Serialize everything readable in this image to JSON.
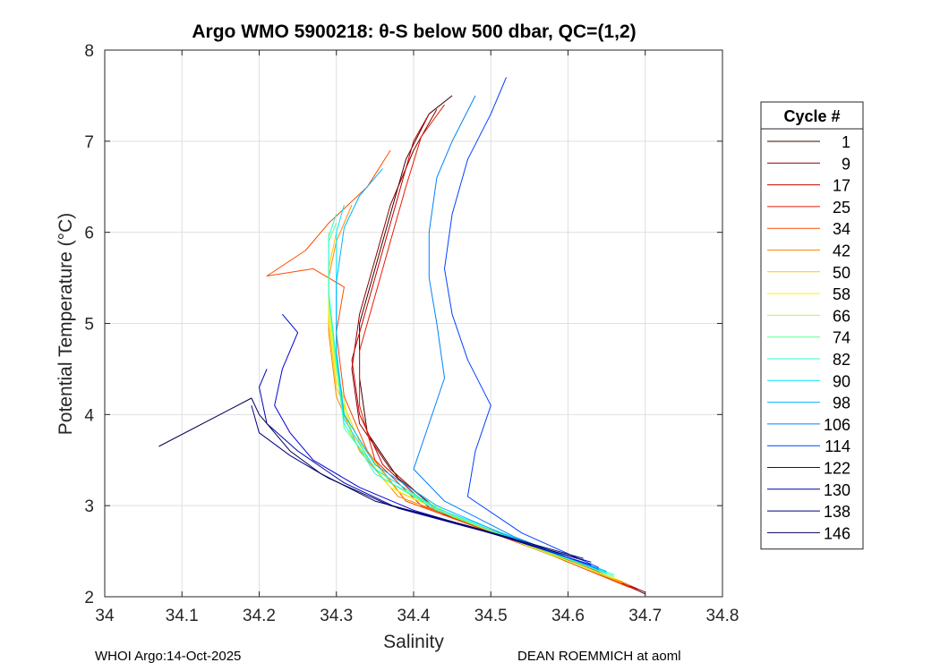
{
  "title": "Argo WMO 5900218: θ-S below 500 dbar,  QC=(1,2)",
  "footer": {
    "left": "WHOI Argo:14-Oct-2025",
    "right": "DEAN ROEMMICH at aoml"
  },
  "chart_data": {
    "type": "line",
    "title": "Argo WMO 5900218: θ-S below 500 dbar,  QC=(1,2)",
    "xlabel": "Salinity",
    "ylabel": "Potential Temperature (°C)",
    "xlim": [
      34.0,
      34.8
    ],
    "ylim": [
      2,
      8
    ],
    "xticks": [
      34.0,
      34.1,
      34.2,
      34.3,
      34.4,
      34.5,
      34.6,
      34.7,
      34.8
    ],
    "xtick_labels": [
      "34",
      "34.1",
      "34.2",
      "34.3",
      "34.4",
      "34.5",
      "34.6",
      "34.7",
      "34.8"
    ],
    "yticks": [
      2,
      3,
      4,
      5,
      6,
      7,
      8
    ],
    "ytick_labels": [
      "2",
      "3",
      "4",
      "5",
      "6",
      "7",
      "8"
    ],
    "grid": true,
    "legend": {
      "title": "Cycle #",
      "placement": "right-outside",
      "entries": [
        {
          "label": "1",
          "color": "#3a0000"
        },
        {
          "label": "9",
          "color": "#8a0000"
        },
        {
          "label": "17",
          "color": "#c80000"
        },
        {
          "label": "25",
          "color": "#e81c00"
        },
        {
          "label": "34",
          "color": "#ff4a00"
        },
        {
          "label": "42",
          "color": "#ff8a00"
        },
        {
          "label": "50",
          "color": "#ffc800"
        },
        {
          "label": "58",
          "color": "#fff200"
        },
        {
          "label": "66",
          "color": "#b0ff40"
        },
        {
          "label": "74",
          "color": "#60ff90"
        },
        {
          "label": "82",
          "color": "#20ffd0"
        },
        {
          "label": "90",
          "color": "#00e8ff"
        },
        {
          "label": "98",
          "color": "#00b4ff"
        },
        {
          "label": "106",
          "color": "#0080ff"
        },
        {
          "label": "114",
          "color": "#0040ff"
        },
        {
          "label": "122",
          "color": "#0000d8"
        },
        {
          "label": "130",
          "color": "#0000a8"
        },
        {
          "label": "138",
          "color": "#000080"
        },
        {
          "label": "146",
          "color": "#000050"
        }
      ]
    },
    "series": [
      {
        "name": "1",
        "color": "#3a0000",
        "points": [
          [
            34.7,
            2.03
          ],
          [
            34.62,
            2.35
          ],
          [
            34.52,
            2.65
          ],
          [
            34.44,
            2.9
          ],
          [
            34.38,
            3.3
          ],
          [
            34.34,
            3.8
          ],
          [
            34.33,
            4.4
          ],
          [
            34.33,
            5.0
          ],
          [
            34.35,
            5.6
          ],
          [
            34.37,
            6.2
          ],
          [
            34.39,
            6.8
          ],
          [
            34.42,
            7.3
          ],
          [
            34.45,
            7.5
          ]
        ]
      },
      {
        "name": "9",
        "color": "#8a0000",
        "points": [
          [
            34.7,
            2.05
          ],
          [
            34.61,
            2.38
          ],
          [
            34.51,
            2.7
          ],
          [
            34.43,
            2.95
          ],
          [
            34.37,
            3.4
          ],
          [
            34.33,
            3.9
          ],
          [
            34.32,
            4.5
          ],
          [
            34.33,
            5.1
          ],
          [
            34.35,
            5.7
          ],
          [
            34.37,
            6.3
          ],
          [
            34.4,
            6.9
          ],
          [
            34.43,
            7.35
          ]
        ]
      },
      {
        "name": "17",
        "color": "#c80000",
        "points": [
          [
            34.69,
            2.07
          ],
          [
            34.6,
            2.4
          ],
          [
            34.5,
            2.72
          ],
          [
            34.42,
            2.98
          ],
          [
            34.36,
            3.45
          ],
          [
            34.33,
            4.0
          ],
          [
            34.32,
            4.6
          ],
          [
            34.34,
            5.2
          ],
          [
            34.36,
            5.8
          ],
          [
            34.38,
            6.4
          ],
          [
            34.4,
            7.0
          ],
          [
            34.42,
            7.3
          ]
        ]
      },
      {
        "name": "25",
        "color": "#e81c00",
        "points": [
          [
            34.69,
            2.08
          ],
          [
            34.6,
            2.42
          ],
          [
            34.49,
            2.75
          ],
          [
            34.41,
            3.0
          ],
          [
            34.35,
            3.5
          ],
          [
            34.33,
            4.1
          ],
          [
            34.33,
            4.7
          ],
          [
            34.35,
            5.3
          ],
          [
            34.37,
            5.9
          ],
          [
            34.39,
            6.5
          ],
          [
            34.41,
            7.05
          ],
          [
            34.44,
            7.4
          ]
        ]
      },
      {
        "name": "34",
        "color": "#ff4a00",
        "points": [
          [
            34.68,
            2.1
          ],
          [
            34.58,
            2.45
          ],
          [
            34.47,
            2.8
          ],
          [
            34.39,
            3.05
          ],
          [
            34.34,
            3.6
          ],
          [
            34.31,
            4.2
          ],
          [
            34.3,
            4.9
          ],
          [
            34.31,
            5.4
          ],
          [
            34.27,
            5.6
          ],
          [
            34.21,
            5.52
          ],
          [
            34.26,
            5.8
          ],
          [
            34.29,
            6.1
          ],
          [
            34.34,
            6.5
          ],
          [
            34.37,
            6.9
          ]
        ]
      },
      {
        "name": "42",
        "color": "#ff8a00",
        "points": [
          [
            34.68,
            2.12
          ],
          [
            34.58,
            2.48
          ],
          [
            34.47,
            2.82
          ],
          [
            34.38,
            3.1
          ],
          [
            34.33,
            3.6
          ],
          [
            34.3,
            4.2
          ],
          [
            34.29,
            4.9
          ],
          [
            34.29,
            5.5
          ],
          [
            34.3,
            5.9
          ],
          [
            34.32,
            6.3
          ]
        ]
      },
      {
        "name": "50",
        "color": "#ffc800",
        "points": [
          [
            34.67,
            2.15
          ],
          [
            34.57,
            2.5
          ],
          [
            34.46,
            2.85
          ],
          [
            34.38,
            3.15
          ],
          [
            34.33,
            3.7
          ],
          [
            34.3,
            4.3
          ],
          [
            34.29,
            5.0
          ],
          [
            34.29,
            5.6
          ],
          [
            34.3,
            6.0
          ]
        ]
      },
      {
        "name": "58",
        "color": "#fff200",
        "points": [
          [
            34.67,
            2.17
          ],
          [
            34.56,
            2.52
          ],
          [
            34.45,
            2.88
          ],
          [
            34.37,
            3.2
          ],
          [
            34.32,
            3.75
          ],
          [
            34.3,
            4.4
          ],
          [
            34.29,
            5.1
          ],
          [
            34.29,
            5.7
          ]
        ]
      },
      {
        "name": "66",
        "color": "#b0ff40",
        "points": [
          [
            34.66,
            2.2
          ],
          [
            34.55,
            2.55
          ],
          [
            34.45,
            2.9
          ],
          [
            34.37,
            3.25
          ],
          [
            34.32,
            3.8
          ],
          [
            34.3,
            4.5
          ],
          [
            34.29,
            5.2
          ],
          [
            34.29,
            5.8
          ],
          [
            34.29,
            6.0
          ]
        ]
      },
      {
        "name": "74",
        "color": "#60ff90",
        "points": [
          [
            34.66,
            2.22
          ],
          [
            34.55,
            2.57
          ],
          [
            34.44,
            2.92
          ],
          [
            34.36,
            3.3
          ],
          [
            34.31,
            3.85
          ],
          [
            34.3,
            4.55
          ],
          [
            34.29,
            5.3
          ],
          [
            34.29,
            5.9
          ],
          [
            34.3,
            6.1
          ]
        ]
      },
      {
        "name": "82",
        "color": "#20ffd0",
        "points": [
          [
            34.66,
            2.24
          ],
          [
            34.54,
            2.6
          ],
          [
            34.43,
            2.95
          ],
          [
            34.35,
            3.35
          ],
          [
            34.31,
            3.9
          ],
          [
            34.3,
            4.6
          ],
          [
            34.29,
            5.35
          ],
          [
            34.29,
            5.95
          ],
          [
            34.3,
            6.2
          ]
        ]
      },
      {
        "name": "90",
        "color": "#00e8ff",
        "points": [
          [
            34.65,
            2.26
          ],
          [
            34.54,
            2.62
          ],
          [
            34.43,
            2.97
          ],
          [
            34.35,
            3.4
          ],
          [
            34.31,
            3.95
          ],
          [
            34.3,
            4.65
          ],
          [
            34.3,
            5.4
          ],
          [
            34.3,
            6.0
          ],
          [
            34.31,
            6.3
          ]
        ]
      },
      {
        "name": "98",
        "color": "#00b4ff",
        "points": [
          [
            34.65,
            2.28
          ],
          [
            34.53,
            2.64
          ],
          [
            34.43,
            3.0
          ],
          [
            34.35,
            3.45
          ],
          [
            34.31,
            4.0
          ],
          [
            34.3,
            4.7
          ],
          [
            34.3,
            5.45
          ],
          [
            34.31,
            6.05
          ],
          [
            34.33,
            6.4
          ],
          [
            34.36,
            6.7
          ]
        ]
      },
      {
        "name": "106",
        "color": "#0080ff",
        "points": [
          [
            34.64,
            2.3
          ],
          [
            34.53,
            2.66
          ],
          [
            34.44,
            3.05
          ],
          [
            34.4,
            3.4
          ],
          [
            34.42,
            3.9
          ],
          [
            34.44,
            4.4
          ],
          [
            34.43,
            5.0
          ],
          [
            34.42,
            5.5
          ],
          [
            34.42,
            6.0
          ],
          [
            34.43,
            6.6
          ],
          [
            34.45,
            7.0
          ],
          [
            34.48,
            7.5
          ]
        ]
      },
      {
        "name": "114",
        "color": "#0040ff",
        "points": [
          [
            34.64,
            2.32
          ],
          [
            34.54,
            2.7
          ],
          [
            34.47,
            3.1
          ],
          [
            34.48,
            3.6
          ],
          [
            34.5,
            4.1
          ],
          [
            34.47,
            4.6
          ],
          [
            34.45,
            5.1
          ],
          [
            34.44,
            5.6
          ],
          [
            34.45,
            6.2
          ],
          [
            34.47,
            6.8
          ],
          [
            34.5,
            7.3
          ],
          [
            34.52,
            7.7
          ]
        ]
      },
      {
        "name": "122",
        "color": "#0000d8",
        "points": [
          [
            34.63,
            2.35
          ],
          [
            34.5,
            2.7
          ],
          [
            34.4,
            2.95
          ],
          [
            34.33,
            3.2
          ],
          [
            34.27,
            3.5
          ],
          [
            34.24,
            3.8
          ],
          [
            34.22,
            4.1
          ],
          [
            34.23,
            4.5
          ],
          [
            34.25,
            4.9
          ],
          [
            34.23,
            5.1
          ]
        ]
      },
      {
        "name": "130",
        "color": "#0000a8",
        "points": [
          [
            34.63,
            2.38
          ],
          [
            34.49,
            2.72
          ],
          [
            34.38,
            2.97
          ],
          [
            34.31,
            3.25
          ],
          [
            34.25,
            3.6
          ],
          [
            34.21,
            3.9
          ],
          [
            34.2,
            4.3
          ],
          [
            34.21,
            4.5
          ]
        ]
      },
      {
        "name": "138",
        "color": "#000080",
        "points": [
          [
            34.62,
            2.4
          ],
          [
            34.48,
            2.75
          ],
          [
            34.37,
            3.0
          ],
          [
            34.29,
            3.3
          ],
          [
            34.24,
            3.55
          ],
          [
            34.2,
            3.8
          ],
          [
            34.19,
            4.1
          ]
        ]
      },
      {
        "name": "146",
        "color": "#000050",
        "points": [
          [
            34.62,
            2.42
          ],
          [
            34.47,
            2.78
          ],
          [
            34.35,
            3.05
          ],
          [
            34.28,
            3.35
          ],
          [
            34.24,
            3.6
          ],
          [
            34.2,
            4.0
          ],
          [
            34.19,
            4.18
          ],
          [
            34.07,
            3.65
          ]
        ]
      }
    ]
  }
}
